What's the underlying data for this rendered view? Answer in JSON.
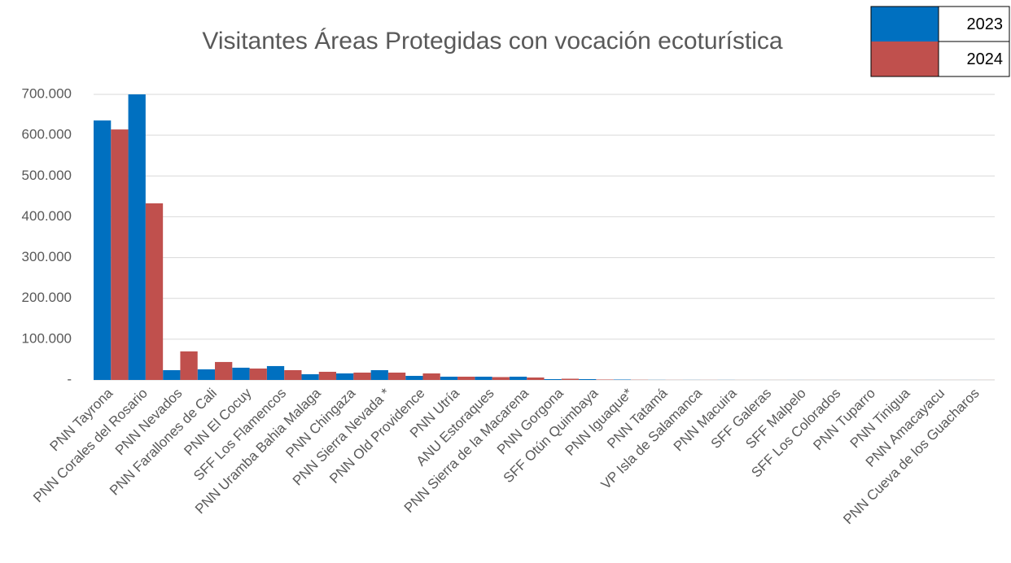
{
  "chart_data": {
    "type": "bar",
    "title": "Visitantes Áreas Protegidas con vocación ecoturística",
    "categories": [
      "PNN Tayrona",
      "PNN Corales del Rosario",
      "PNN Nevados",
      "PNN Farallones de Cali",
      "PNN El Cocuy",
      "SFF Los Flamencos",
      "PNN Uramba Bahia Malaga",
      "PNN Chingaza",
      "PNN Sierra Nevada *",
      "PNN Old Providence",
      "PNN Utría",
      "ANU Estoraques",
      "PNN Sierra de la Macarena",
      "PNN Gorgona",
      "SFF Otún Quimbaya",
      "PNN Iguaque*",
      "PNN Tatamá",
      "VP Isla de Salamanca",
      "PNN Macuira",
      "SFF Galeras",
      "SFF Malpelo",
      "SFF Los Colorados",
      "PNN Tuparro",
      "PNN Tinigua",
      "PNN Amacayacu",
      "PNN Cueva de los Guacharos"
    ],
    "series": [
      {
        "name": "2023",
        "color": "#0070c0",
        "values": [
          636000,
          700000,
          24000,
          26000,
          30000,
          34000,
          14000,
          16000,
          24000,
          10000,
          8000,
          8000,
          8000,
          2000,
          2000,
          1000,
          300,
          200,
          200,
          100,
          100,
          100,
          100,
          100,
          100,
          100
        ]
      },
      {
        "name": "2024",
        "color": "#c0504d",
        "values": [
          614000,
          433000,
          70000,
          44000,
          28000,
          24000,
          20000,
          18000,
          18000,
          16000,
          8000,
          7000,
          6000,
          3000,
          1000,
          500,
          200,
          200,
          100,
          100,
          100,
          100,
          100,
          100,
          100,
          100
        ]
      }
    ],
    "ylim": [
      0,
      700000
    ],
    "yticks": [
      {
        "value": 0,
        "label": "-"
      },
      {
        "value": 100000,
        "label": "100.000"
      },
      {
        "value": 200000,
        "label": "200.000"
      },
      {
        "value": 300000,
        "label": "300.000"
      },
      {
        "value": 400000,
        "label": "400.000"
      },
      {
        "value": 500000,
        "label": "500.000"
      },
      {
        "value": 600000,
        "label": "600.000"
      },
      {
        "value": 700000,
        "label": "700.000"
      }
    ],
    "grid": true,
    "legend": "top-right"
  }
}
